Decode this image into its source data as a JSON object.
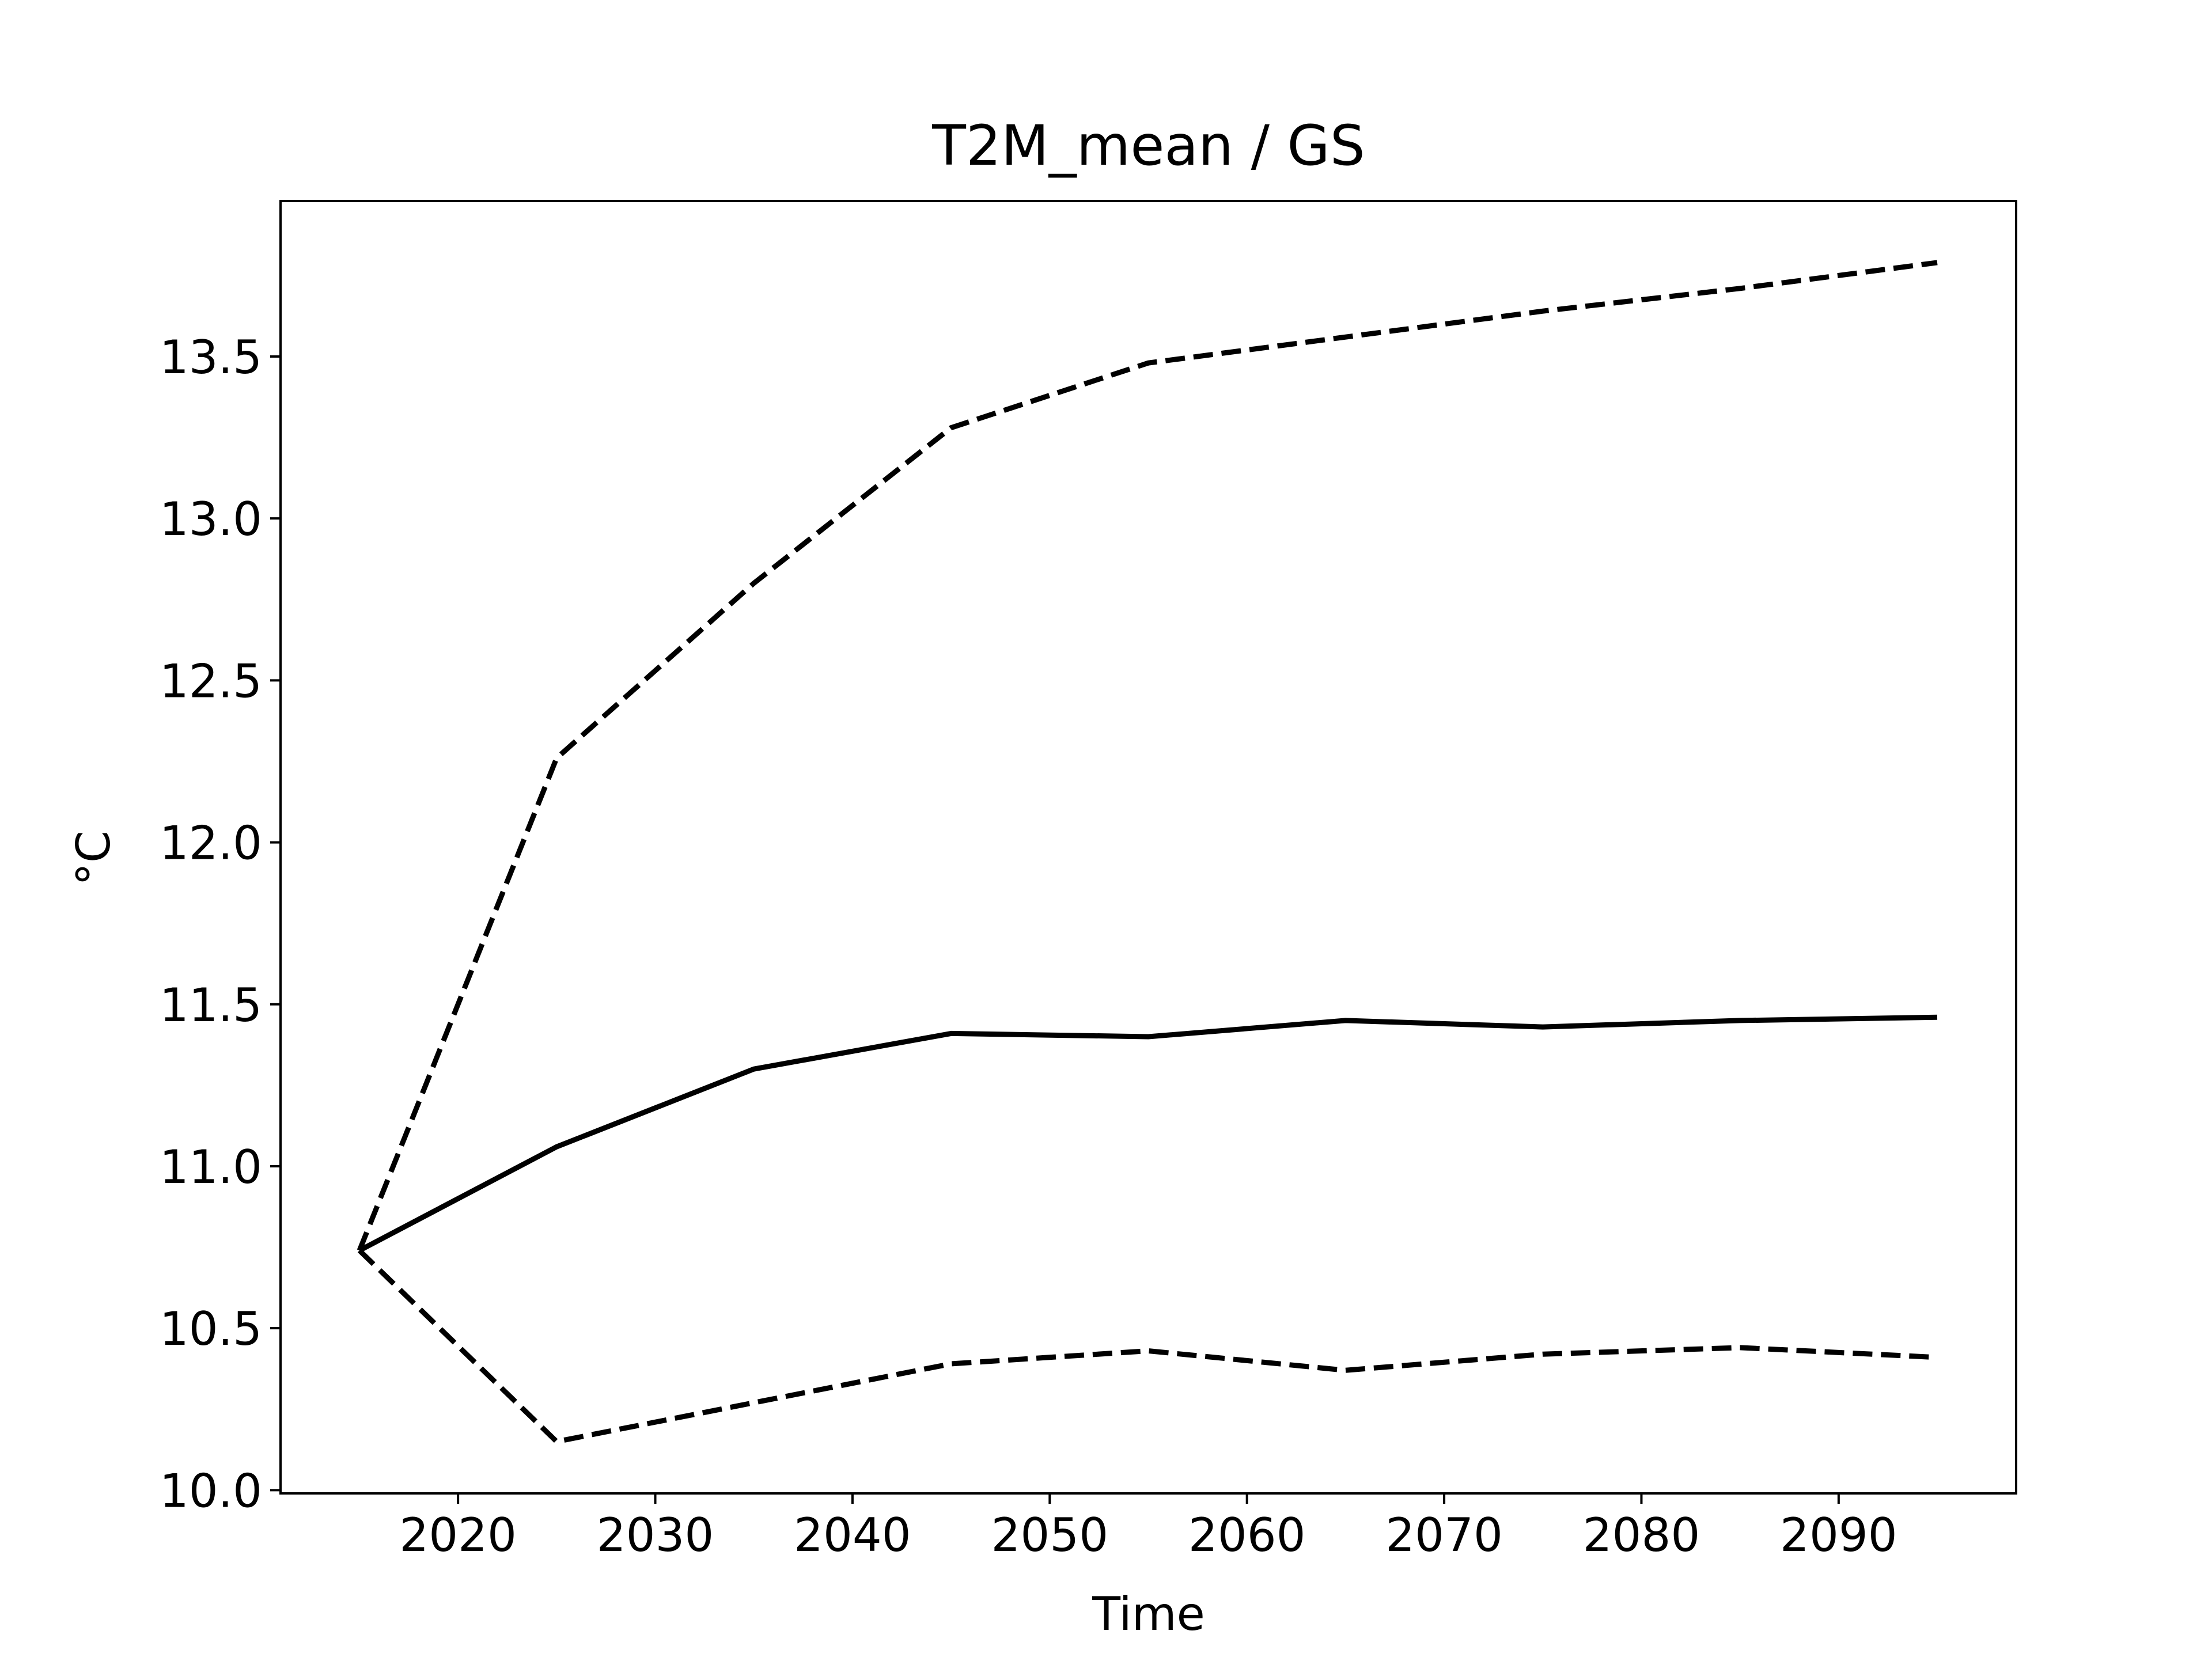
{
  "chart_data": {
    "type": "line",
    "title": "T2M_mean / GS",
    "xlabel": "Time",
    "ylabel": "°C",
    "x": [
      2015,
      2025,
      2035,
      2045,
      2055,
      2065,
      2075,
      2085,
      2095
    ],
    "series": [
      {
        "style": "solid",
        "color": "#000000",
        "values": [
          10.74,
          11.06,
          11.3,
          11.41,
          11.4,
          11.45,
          11.43,
          11.45,
          11.46
        ]
      },
      {
        "style": "dashed",
        "color": "#000000",
        "values": [
          10.74,
          12.26,
          12.8,
          13.28,
          13.48,
          13.56,
          13.64,
          13.71,
          13.79
        ]
      },
      {
        "style": "dashed",
        "color": "#000000",
        "values": [
          10.74,
          10.15,
          10.27,
          10.39,
          10.43,
          10.37,
          10.42,
          10.44,
          10.41
        ]
      }
    ],
    "xlim": [
      2011.0,
      2099.0
    ],
    "ylim": [
      9.99,
      13.98
    ],
    "xticks": [
      2020,
      2030,
      2040,
      2050,
      2060,
      2070,
      2080,
      2090
    ],
    "xtick_labels": [
      "2020",
      "2030",
      "2040",
      "2050",
      "2060",
      "2070",
      "2080",
      "2090"
    ],
    "yticks": [
      10.0,
      10.5,
      11.0,
      11.5,
      12.0,
      12.5,
      13.0,
      13.5
    ],
    "ytick_labels": [
      "10.0",
      "10.5",
      "11.0",
      "11.5",
      "12.0",
      "12.5",
      "13.0",
      "13.5"
    ],
    "grid": false,
    "legend": "none"
  }
}
